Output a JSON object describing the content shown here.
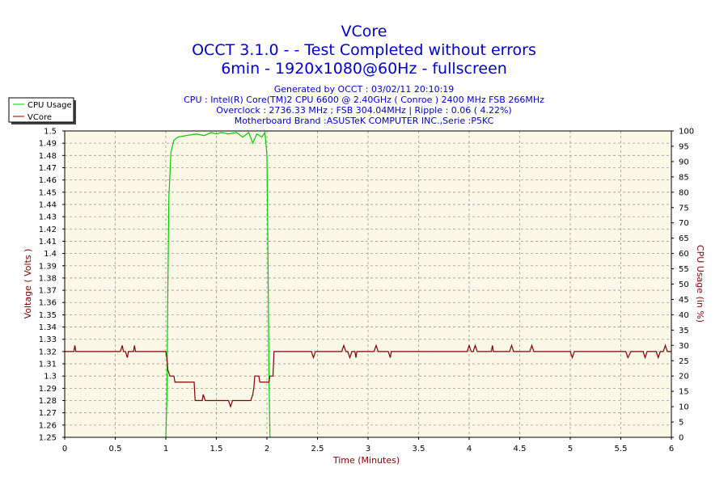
{
  "chart_data": {
    "type": "line",
    "title_lines": [
      "VCore",
      "OCCT 3.1.0 -  - Test Completed without errors",
      "6min - 1920x1080@60Hz - fullscreen"
    ],
    "info_lines": [
      "Generated by OCCT : 03/02/11 20:10:19",
      "CPU : Intel(R) Core(TM)2 CPU 6600 @ 2.40GHz ( Conroe ) 2400 MHz FSB 266MHz",
      "Overclock : 2736.33 MHz ; FSB 304.04MHz | Ripple : 0.06 ( 4.22%)",
      "Motherboard Brand :ASUSTeK COMPUTER INC.,Serie :P5KC"
    ],
    "xlabel": "Time (Minutes)",
    "ylabel_left": "Voltage ( Volts )",
    "ylabel_right": "CPU Usage (in %)",
    "xlim": [
      0,
      6
    ],
    "ylim_left": [
      1.25,
      1.5
    ],
    "ylim_right": [
      0,
      100
    ],
    "x_ticks": [
      "0",
      "0.5",
      "1",
      "1.5",
      "2",
      "2.5",
      "3",
      "3.5",
      "4",
      "4.5",
      "5",
      "5.5",
      "6"
    ],
    "y_left_ticks": [
      "1.25",
      "1.26",
      "1.27",
      "1.28",
      "1.29",
      "1.3",
      "1.31",
      "1.32",
      "1.33",
      "1.34",
      "1.35",
      "1.36",
      "1.37",
      "1.38",
      "1.39",
      "1.4",
      "1.41",
      "1.42",
      "1.43",
      "1.44",
      "1.45",
      "1.46",
      "1.47",
      "1.48",
      "1.49",
      "1.5"
    ],
    "y_right_ticks": [
      "0",
      "5",
      "10",
      "15",
      "20",
      "25",
      "30",
      "35",
      "40",
      "45",
      "50",
      "55",
      "60",
      "65",
      "70",
      "75",
      "80",
      "85",
      "90",
      "95",
      "100"
    ],
    "grid": true,
    "legend_position": "top-left",
    "colors": {
      "plot_background": "#fbf8e8",
      "grid": "#999999",
      "cpu_usage": "#00cc00",
      "vcore": "#800000",
      "title": "#0000cc",
      "axis_label": "#800000"
    },
    "series": [
      {
        "name": "CPU Usage",
        "axis": "right",
        "color": "#00cc00",
        "points": [
          [
            1.0,
            0
          ],
          [
            1.01,
            12
          ],
          [
            1.02,
            48
          ],
          [
            1.03,
            78
          ],
          [
            1.05,
            93
          ],
          [
            1.08,
            97
          ],
          [
            1.12,
            98
          ],
          [
            1.2,
            98.5
          ],
          [
            1.3,
            99
          ],
          [
            1.38,
            98.5
          ],
          [
            1.45,
            99.5
          ],
          [
            1.5,
            99
          ],
          [
            1.55,
            99.5
          ],
          [
            1.62,
            99
          ],
          [
            1.7,
            99.5
          ],
          [
            1.76,
            98
          ],
          [
            1.82,
            99.5
          ],
          [
            1.86,
            96
          ],
          [
            1.9,
            99
          ],
          [
            1.95,
            98
          ],
          [
            1.98,
            99.5
          ],
          [
            1.99,
            96
          ],
          [
            2.0,
            92
          ],
          [
            2.01,
            60
          ],
          [
            2.02,
            20
          ],
          [
            2.03,
            0
          ]
        ]
      },
      {
        "name": "VCore",
        "axis": "left",
        "color": "#800000",
        "points": [
          [
            0,
            1.32
          ],
          [
            0.09,
            1.32
          ],
          [
            0.1,
            1.325
          ],
          [
            0.11,
            1.32
          ],
          [
            0.55,
            1.32
          ],
          [
            0.57,
            1.325
          ],
          [
            0.58,
            1.32
          ],
          [
            0.6,
            1.32
          ],
          [
            0.62,
            1.315
          ],
          [
            0.63,
            1.32
          ],
          [
            0.68,
            1.32
          ],
          [
            0.69,
            1.325
          ],
          [
            0.7,
            1.32
          ],
          [
            1.0,
            1.32
          ],
          [
            1.01,
            1.315
          ],
          [
            1.02,
            1.305
          ],
          [
            1.04,
            1.3
          ],
          [
            1.08,
            1.3
          ],
          [
            1.09,
            1.295
          ],
          [
            1.28,
            1.295
          ],
          [
            1.29,
            1.28
          ],
          [
            1.36,
            1.28
          ],
          [
            1.37,
            1.285
          ],
          [
            1.39,
            1.28
          ],
          [
            1.62,
            1.28
          ],
          [
            1.64,
            1.275
          ],
          [
            1.66,
            1.28
          ],
          [
            1.84,
            1.28
          ],
          [
            1.86,
            1.285
          ],
          [
            1.87,
            1.29
          ],
          [
            1.88,
            1.3
          ],
          [
            1.92,
            1.3
          ],
          [
            1.93,
            1.295
          ],
          [
            2.02,
            1.295
          ],
          [
            2.03,
            1.3
          ],
          [
            2.06,
            1.3
          ],
          [
            2.07,
            1.32
          ],
          [
            2.44,
            1.32
          ],
          [
            2.46,
            1.315
          ],
          [
            2.48,
            1.32
          ],
          [
            2.74,
            1.32
          ],
          [
            2.76,
            1.325
          ],
          [
            2.78,
            1.32
          ],
          [
            2.8,
            1.32
          ],
          [
            2.82,
            1.315
          ],
          [
            2.84,
            1.32
          ],
          [
            2.87,
            1.32
          ],
          [
            2.88,
            1.315
          ],
          [
            2.89,
            1.32
          ],
          [
            3.06,
            1.32
          ],
          [
            3.08,
            1.325
          ],
          [
            3.1,
            1.32
          ],
          [
            3.2,
            1.32
          ],
          [
            3.22,
            1.315
          ],
          [
            3.23,
            1.32
          ],
          [
            3.98,
            1.32
          ],
          [
            4.0,
            1.325
          ],
          [
            4.02,
            1.32
          ],
          [
            4.04,
            1.32
          ],
          [
            4.06,
            1.325
          ],
          [
            4.08,
            1.32
          ],
          [
            4.22,
            1.32
          ],
          [
            4.23,
            1.325
          ],
          [
            4.24,
            1.32
          ],
          [
            4.4,
            1.32
          ],
          [
            4.42,
            1.325
          ],
          [
            4.44,
            1.32
          ],
          [
            4.6,
            1.32
          ],
          [
            4.62,
            1.325
          ],
          [
            4.64,
            1.32
          ],
          [
            5.0,
            1.32
          ],
          [
            5.02,
            1.315
          ],
          [
            5.04,
            1.32
          ],
          [
            5.55,
            1.32
          ],
          [
            5.57,
            1.315
          ],
          [
            5.6,
            1.32
          ],
          [
            5.72,
            1.32
          ],
          [
            5.74,
            1.315
          ],
          [
            5.76,
            1.32
          ],
          [
            5.85,
            1.32
          ],
          [
            5.87,
            1.315
          ],
          [
            5.89,
            1.32
          ],
          [
            5.92,
            1.32
          ],
          [
            5.94,
            1.325
          ],
          [
            5.96,
            1.32
          ],
          [
            6.0,
            1.32
          ]
        ]
      }
    ]
  }
}
